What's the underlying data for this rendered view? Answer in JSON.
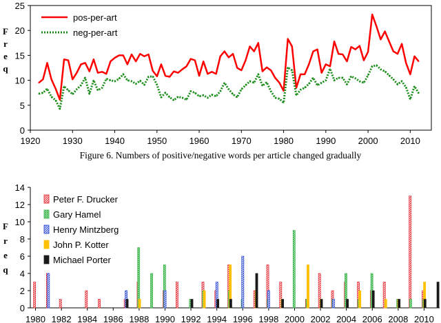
{
  "caption": "Figure 6. Numbers of positive/negative words per article changed gradually",
  "chart_data": [
    {
      "type": "line",
      "ylabel": "Freq",
      "ylim": [
        0,
        25
      ],
      "xlim": [
        1920,
        2015
      ],
      "yticks": [
        0,
        5,
        10,
        15,
        20,
        25
      ],
      "xticks": [
        1920,
        1930,
        1940,
        1950,
        1960,
        1970,
        1980,
        1990,
        2000,
        2010
      ],
      "legend_position": "top-left",
      "grid": false,
      "x": [
        1922,
        1923,
        1924,
        1925,
        1926,
        1927,
        1928,
        1929,
        1930,
        1931,
        1932,
        1933,
        1934,
        1935,
        1936,
        1937,
        1938,
        1939,
        1940,
        1941,
        1942,
        1943,
        1944,
        1945,
        1946,
        1947,
        1948,
        1949,
        1950,
        1951,
        1952,
        1953,
        1954,
        1955,
        1956,
        1957,
        1958,
        1959,
        1960,
        1961,
        1962,
        1963,
        1964,
        1965,
        1966,
        1967,
        1968,
        1969,
        1970,
        1971,
        1972,
        1973,
        1974,
        1975,
        1976,
        1977,
        1978,
        1979,
        1980,
        1981,
        1982,
        1983,
        1984,
        1985,
        1986,
        1987,
        1988,
        1989,
        1990,
        1991,
        1992,
        1993,
        1994,
        1995,
        1996,
        1997,
        1998,
        1999,
        2000,
        2001,
        2002,
        2003,
        2004,
        2005,
        2006,
        2007,
        2008,
        2009,
        2010,
        2011,
        2012
      ],
      "series": [
        {
          "name": "pos-per-art",
          "color": "#ff0000",
          "style": "solid",
          "values": [
            9.5,
            10.2,
            13.5,
            10.2,
            8.3,
            6.1,
            14.2,
            14.0,
            10.2,
            11.5,
            13.2,
            13.5,
            11.8,
            14.2,
            11.5,
            11.7,
            11.3,
            13.8,
            14.5,
            15.0,
            15.0,
            13.2,
            15.2,
            13.8,
            15.3,
            14.8,
            15.2,
            11.9,
            10.8,
            13.2,
            10.9,
            10.7,
            11.8,
            11.5,
            12.2,
            12.8,
            14.3,
            14.0,
            10.9,
            13.8,
            11.3,
            11.7,
            11.3,
            14.8,
            15.8,
            14.6,
            15.3,
            12.5,
            12.0,
            14.0,
            16.8,
            15.8,
            17.5,
            11.8,
            12.6,
            12.0,
            10.5,
            9.5,
            7.9,
            18.3,
            16.8,
            8.5,
            11.2,
            11.2,
            13.2,
            15.8,
            16.2,
            11.5,
            13.2,
            12.8,
            17.8,
            15.3,
            15.2,
            13.8,
            16.7,
            16.2,
            16.9,
            14.0,
            15.7,
            23.2,
            20.8,
            18.2,
            19.8,
            17.8,
            15.8,
            15.3,
            17.3,
            13.5,
            11.2,
            14.8,
            13.8
          ]
        },
        {
          "name": "neg-per-art",
          "color": "#1a8c1a",
          "style": "dotted",
          "values": [
            7.3,
            7.5,
            8.3,
            6.7,
            6.0,
            4.3,
            8.8,
            8.0,
            7.2,
            8.2,
            9.0,
            10.5,
            7.3,
            10.0,
            8.0,
            8.5,
            10.3,
            10.0,
            9.8,
            10.3,
            11.2,
            10.0,
            9.8,
            9.3,
            9.9,
            9.1,
            10.7,
            10.8,
            9.1,
            6.6,
            7.5,
            6.6,
            6.0,
            6.7,
            6.5,
            6.1,
            7.8,
            7.5,
            6.8,
            7.0,
            6.5,
            7.1,
            6.8,
            7.8,
            9.5,
            8.2,
            7.2,
            6.6,
            8.2,
            9.0,
            9.8,
            9.5,
            11.2,
            8.9,
            9.6,
            7.8,
            6.5,
            6.3,
            5.5,
            12.6,
            12.0,
            7.0,
            8.1,
            8.5,
            9.3,
            10.5,
            9.0,
            9.5,
            10.0,
            12.3,
            10.0,
            10.5,
            10.5,
            9.2,
            10.8,
            10.4,
            9.8,
            9.5,
            11.0,
            12.8,
            13.0,
            12.2,
            11.8,
            11.0,
            10.2,
            9.2,
            9.8,
            8.6,
            6.2,
            8.8,
            7.4
          ]
        }
      ]
    },
    {
      "type": "bar",
      "ylabel": "Freq",
      "ylim": [
        0,
        14
      ],
      "xlim": [
        1979.6,
        2011.2
      ],
      "yticks": [
        0,
        2,
        4,
        6,
        8,
        10,
        12,
        14
      ],
      "xticks": [
        1980,
        1982,
        1984,
        1986,
        1988,
        1990,
        1992,
        1994,
        1996,
        1998,
        2000,
        2002,
        2004,
        2006,
        2008,
        2010
      ],
      "legend_position": "top-left",
      "grid": false,
      "series": [
        {
          "name": "Peter F. Drucker",
          "color": "#e8202a",
          "pattern": "diagonal",
          "data": [
            [
              1980,
              3
            ],
            [
              1981,
              4
            ],
            [
              1982,
              1
            ],
            [
              1984,
              2
            ],
            [
              1985,
              1
            ],
            [
              1987,
              1
            ],
            [
              1988,
              3
            ],
            [
              1990,
              2
            ],
            [
              1991,
              3
            ],
            [
              1993,
              3
            ],
            [
              1994,
              2
            ],
            [
              1995,
              5
            ],
            [
              1997,
              2
            ],
            [
              1998,
              5
            ],
            [
              1999,
              3
            ],
            [
              2001,
              1
            ],
            [
              2002,
              4
            ],
            [
              2003,
              2
            ],
            [
              2004,
              3
            ],
            [
              2005,
              3
            ],
            [
              2006,
              2
            ],
            [
              2007,
              3
            ],
            [
              2009,
              13
            ],
            [
              2010,
              2
            ]
          ]
        },
        {
          "name": "Gary Hamel",
          "color": "#3ab54a",
          "pattern": "cross",
          "data": [
            [
              1988,
              7
            ],
            [
              1989,
              4
            ],
            [
              1990,
              5
            ],
            [
              1992,
              1
            ],
            [
              1993,
              2
            ],
            [
              1995,
              2
            ],
            [
              1996,
              1
            ],
            [
              1998,
              1
            ],
            [
              2000,
              9
            ],
            [
              2001,
              1
            ],
            [
              2003,
              1
            ],
            [
              2004,
              4
            ],
            [
              2005,
              1
            ],
            [
              2006,
              4
            ],
            [
              2008,
              1
            ],
            [
              2009,
              1
            ],
            [
              2010,
              1
            ]
          ]
        },
        {
          "name": "Henry Mintzberg",
          "color": "#1f3fd6",
          "pattern": "diagonal",
          "data": [
            [
              1981,
              4
            ],
            [
              1987,
              2
            ],
            [
              1990,
              2
            ],
            [
              1994,
              3
            ],
            [
              1996,
              6
            ],
            [
              1998,
              2
            ],
            [
              2003,
              1
            ]
          ]
        },
        {
          "name": "John P. Kotter",
          "color": "#ffc000",
          "pattern": "solid",
          "data": [
            [
              1988,
              1
            ],
            [
              1993,
              2
            ],
            [
              1995,
              5
            ],
            [
              1997,
              2
            ],
            [
              1999,
              1
            ],
            [
              2001,
              5
            ],
            [
              2002,
              1
            ],
            [
              2005,
              2
            ],
            [
              2007,
              1
            ],
            [
              2008,
              1
            ],
            [
              2010,
              3
            ]
          ]
        },
        {
          "name": "Michael Porter",
          "color": "#1a1a1a",
          "pattern": "solid",
          "data": [
            [
              1987,
              1
            ],
            [
              1992,
              1
            ],
            [
              1994,
              1
            ],
            [
              1995,
              1
            ],
            [
              1997,
              4
            ],
            [
              1999,
              1
            ],
            [
              2002,
              1
            ],
            [
              2004,
              1
            ],
            [
              2006,
              2
            ],
            [
              2008,
              1
            ],
            [
              2010,
              1
            ],
            [
              2011,
              3
            ]
          ]
        }
      ]
    }
  ]
}
